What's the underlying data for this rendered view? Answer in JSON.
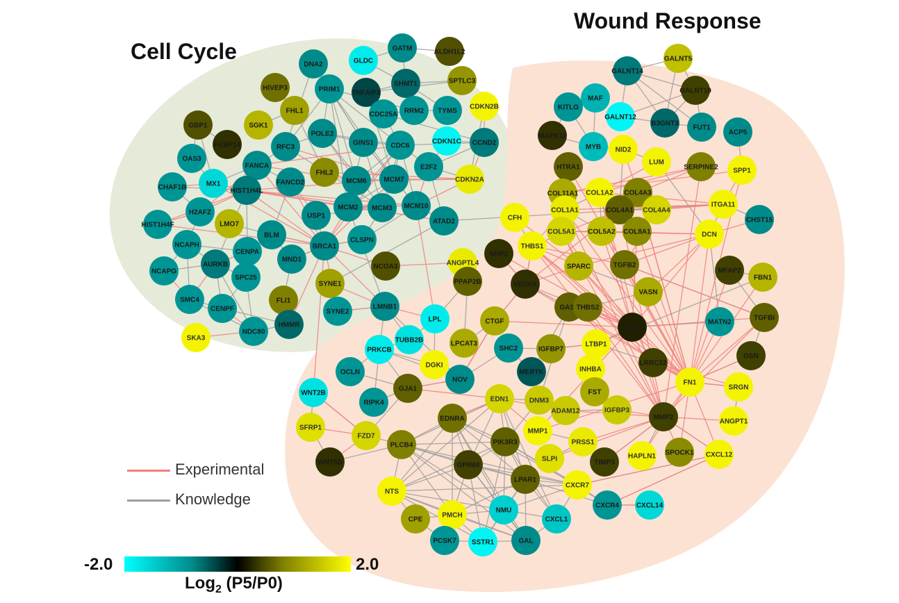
{
  "clusters": {
    "cell_cycle": "Cell Cycle",
    "wound_response": "Wound Response"
  },
  "legend": {
    "experimental": "Experimental",
    "knowledge": "Knowledge"
  },
  "scale": {
    "min": "-2.0",
    "max": "2.0",
    "title_main": "Log",
    "title_sub": "2",
    "title_rest": " (P5/P0)"
  },
  "colors": {
    "cc_bg": "#e6ead8",
    "wr_bg": "#fbe2d2",
    "experimental": "#f08080",
    "knowledge": "#9e9e9e",
    "cyan": "#00ffff",
    "teal": "#008b8b",
    "black": "#000000",
    "olive": "#808000",
    "yellow": "#ffff00"
  },
  "nodes": [
    {
      "id": "GATM",
      "v": -0.8
    },
    {
      "id": "ALDH1L2",
      "v": 0.5
    },
    {
      "id": "DNA2",
      "v": -0.8
    },
    {
      "id": "GLDC",
      "v": -1.8
    },
    {
      "id": "SHMT1",
      "v": -0.6
    },
    {
      "id": "SPTLC3",
      "v": 1.0
    },
    {
      "id": "HIVEP3",
      "v": 0.7
    },
    {
      "id": "PRIM1",
      "v": -0.9
    },
    {
      "id": "TNFAIP3",
      "v": -0.4
    },
    {
      "id": "FHL1",
      "v": 1.1
    },
    {
      "id": "CDKN2B",
      "v": 1.9
    },
    {
      "id": "GBP1",
      "v": 0.5
    },
    {
      "id": "SGK1",
      "v": 1.3
    },
    {
      "id": "CDC25A",
      "v": -0.9
    },
    {
      "id": "RRM2",
      "v": -0.9
    },
    {
      "id": "TYMS",
      "v": -0.9
    },
    {
      "id": "FKBP14",
      "v": 0.3
    },
    {
      "id": "POLE2",
      "v": -0.8
    },
    {
      "id": "OAS3",
      "v": -0.9
    },
    {
      "id": "RFC3",
      "v": -0.8
    },
    {
      "id": "GINS1",
      "v": -0.8
    },
    {
      "id": "CDC6",
      "v": -0.9
    },
    {
      "id": "CDKN1C",
      "v": -1.9
    },
    {
      "id": "CCND2",
      "v": -0.7
    },
    {
      "id": "FANCA",
      "v": -0.8
    },
    {
      "id": "FHL2",
      "v": 0.9
    },
    {
      "id": "MX1",
      "v": -1.6
    },
    {
      "id": "CHAF1B",
      "v": -0.9
    },
    {
      "id": "HIST1H4L",
      "v": -0.7
    },
    {
      "id": "FANCD2",
      "v": -0.8
    },
    {
      "id": "MCM6",
      "v": -0.8
    },
    {
      "id": "MCM7",
      "v": -0.8
    },
    {
      "id": "E2F2",
      "v": -0.9
    },
    {
      "id": "CDKN2A",
      "v": 1.8
    },
    {
      "id": "H2AFZ",
      "v": -0.9
    },
    {
      "id": "MCM2",
      "v": -0.8
    },
    {
      "id": "MCM3",
      "v": -0.8
    },
    {
      "id": "MCM10",
      "v": -0.8
    },
    {
      "id": "HIST1H4F",
      "v": -0.9
    },
    {
      "id": "LMO7",
      "v": 1.3
    },
    {
      "id": "USP1",
      "v": -0.8
    },
    {
      "id": "ATAD2",
      "v": -0.8
    },
    {
      "id": "BLM",
      "v": -0.8
    },
    {
      "id": "NCAPH",
      "v": -0.9
    },
    {
      "id": "CENPA",
      "v": -0.9
    },
    {
      "id": "CLSPN",
      "v": -0.9
    },
    {
      "id": "BRCA1",
      "v": -0.8
    },
    {
      "id": "NCAPG",
      "v": -0.9
    },
    {
      "id": "AURKB",
      "v": -0.7
    },
    {
      "id": "MND1",
      "v": -0.8
    },
    {
      "id": "SPC25",
      "v": -0.9
    },
    {
      "id": "NCOA3",
      "v": 0.5
    },
    {
      "id": "ANGPTL4",
      "v": 1.8
    },
    {
      "id": "SYNE1",
      "v": 1.1
    },
    {
      "id": "SMC4",
      "v": -0.9
    },
    {
      "id": "FLI1",
      "v": 0.8
    },
    {
      "id": "CENPF",
      "v": -0.9
    },
    {
      "id": "SYNE2",
      "v": -0.9
    },
    {
      "id": "LMNB1",
      "v": -0.8
    },
    {
      "id": "HMMR",
      "v": -0.6
    },
    {
      "id": "NDC80",
      "v": -0.9
    },
    {
      "id": "SKA3",
      "v": 1.9
    },
    {
      "id": "GALNT5",
      "v": 1.4
    },
    {
      "id": "GALNT14",
      "v": -0.7
    },
    {
      "id": "GALNT10",
      "v": 0.4
    },
    {
      "id": "MAF",
      "v": -1.2
    },
    {
      "id": "KITLG",
      "v": -0.9
    },
    {
      "id": "GALNT12",
      "v": -1.9
    },
    {
      "id": "B3GNT3",
      "v": -0.6
    },
    {
      "id": "FUT1",
      "v": -0.8
    },
    {
      "id": "ACP5",
      "v": -0.8
    },
    {
      "id": "MAPK11",
      "v": 0.3
    },
    {
      "id": "MYB",
      "v": -1.3
    },
    {
      "id": "NID2",
      "v": 1.9
    },
    {
      "id": "LUM",
      "v": 1.9
    },
    {
      "id": "SERPINE2",
      "v": 0.8
    },
    {
      "id": "HTRA1",
      "v": 0.6
    },
    {
      "id": "SPP1",
      "v": 1.9
    },
    {
      "id": "COL11A1",
      "v": 1.2
    },
    {
      "id": "COL1A2",
      "v": 1.9
    },
    {
      "id": "COL4A3",
      "v": 0.8
    },
    {
      "id": "ITGA11",
      "v": 1.9
    },
    {
      "id": "COL1A1",
      "v": 1.8
    },
    {
      "id": "COL4A1",
      "v": 0.6
    },
    {
      "id": "COL4A4",
      "v": 1.6
    },
    {
      "id": "CHST15",
      "v": -0.8
    },
    {
      "id": "CFH",
      "v": 1.9
    },
    {
      "id": "COL5A1",
      "v": 1.6
    },
    {
      "id": "COL5A2",
      "v": 1.4
    },
    {
      "id": "COL8A1",
      "v": 0.9
    },
    {
      "id": "DCN",
      "v": 1.9
    },
    {
      "id": "THBS1",
      "v": 1.9
    },
    {
      "id": "NRP2",
      "v": 0.3
    },
    {
      "id": "SPARC",
      "v": 1.3
    },
    {
      "id": "TGFB2",
      "v": 0.7
    },
    {
      "id": "MFAP2",
      "v": 0.4
    },
    {
      "id": "FBN1",
      "v": 1.3
    },
    {
      "id": "VEGFA",
      "v": 0.3
    },
    {
      "id": "VASN",
      "v": 1.2
    },
    {
      "id": "PPAP2B",
      "v": 0.6
    },
    {
      "id": "GAS6",
      "v": 0.6
    },
    {
      "id": "THBS2",
      "v": 0.7
    },
    {
      "id": "TGFBI",
      "v": 0.6
    },
    {
      "id": "LPL",
      "v": -1.8
    },
    {
      "id": "CTGF",
      "v": 1.2
    },
    {
      "id": "TGFB1",
      "v": 0.2
    },
    {
      "id": "MATN2",
      "v": -0.9
    },
    {
      "id": "TUBB2B",
      "v": -1.7
    },
    {
      "id": "PRKCB",
      "v": -1.8
    },
    {
      "id": "LPCAT3",
      "v": 1.2
    },
    {
      "id": "SHC2",
      "v": -0.9
    },
    {
      "id": "IGFBP7",
      "v": 1.0
    },
    {
      "id": "LTBP1",
      "v": 1.9
    },
    {
      "id": "GSN",
      "v": 0.4
    },
    {
      "id": "OCLN",
      "v": -0.9
    },
    {
      "id": "DGKI",
      "v": 1.9
    },
    {
      "id": "NOV",
      "v": -0.8
    },
    {
      "id": "MERTK",
      "v": -0.5
    },
    {
      "id": "INHBA",
      "v": 1.9
    },
    {
      "id": "LRRC32",
      "v": 0.4
    },
    {
      "id": "FN1",
      "v": 1.9
    },
    {
      "id": "SRGN",
      "v": 1.9
    },
    {
      "id": "WNT2B",
      "v": -1.7
    },
    {
      "id": "GJA1",
      "v": 0.6
    },
    {
      "id": "RIPK4",
      "v": -0.9
    },
    {
      "id": "EDN1",
      "v": 1.6
    },
    {
      "id": "DNM3",
      "v": 1.5
    },
    {
      "id": "FST",
      "v": 1.2
    },
    {
      "id": "ADAM12",
      "v": 1.5
    },
    {
      "id": "IGFBP3",
      "v": 1.5
    },
    {
      "id": "MMP2",
      "v": 0.4
    },
    {
      "id": "ANGPT1",
      "v": 1.9
    },
    {
      "id": "SFRP1",
      "v": 1.7
    },
    {
      "id": "FZD7",
      "v": 1.6
    },
    {
      "id": "EDNRA",
      "v": 0.7
    },
    {
      "id": "MMP1",
      "v": 1.9
    },
    {
      "id": "PLCB4",
      "v": 0.8
    },
    {
      "id": "PIK3R3",
      "v": 0.6
    },
    {
      "id": "PRSS1",
      "v": 1.8
    },
    {
      "id": "WNT5B",
      "v": 0.3
    },
    {
      "id": "GPR68",
      "v": 0.4
    },
    {
      "id": "SLPI",
      "v": 1.7
    },
    {
      "id": "TIMP3",
      "v": 0.4
    },
    {
      "id": "HAPLN1",
      "v": 1.9
    },
    {
      "id": "SPOCK1",
      "v": 0.9
    },
    {
      "id": "CXCL12",
      "v": 1.9
    },
    {
      "id": "LPAR1",
      "v": 0.6
    },
    {
      "id": "CXCR7",
      "v": 1.9
    },
    {
      "id": "NTS",
      "v": 1.9
    },
    {
      "id": "CXCR4",
      "v": -0.9
    },
    {
      "id": "CXCL14",
      "v": -1.6
    },
    {
      "id": "CPE",
      "v": 1.1
    },
    {
      "id": "PMCH",
      "v": 1.9
    },
    {
      "id": "NMU",
      "v": -1.5
    },
    {
      "id": "CXCL1",
      "v": -1.4
    },
    {
      "id": "PCSK7",
      "v": -0.9
    },
    {
      "id": "SSTR1",
      "v": -1.9
    },
    {
      "id": "GAL",
      "v": -0.8
    }
  ]
}
